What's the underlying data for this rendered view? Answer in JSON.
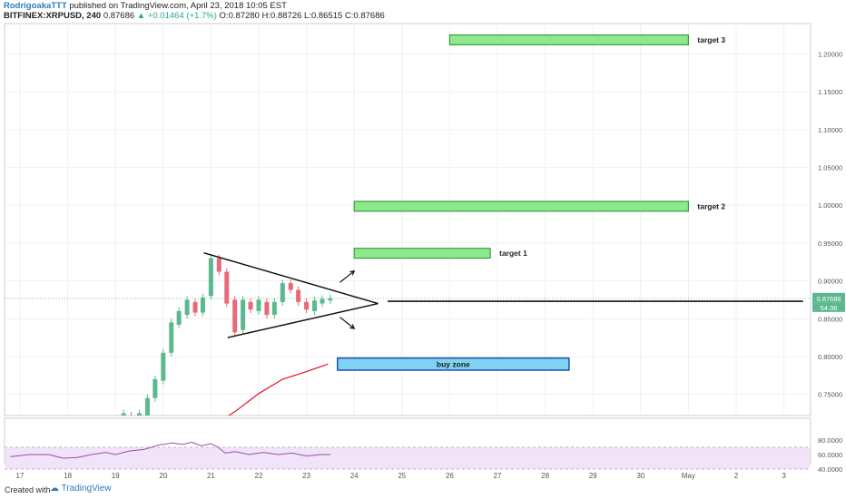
{
  "header": {
    "author": "RodrigoakaTTT",
    "published": "published on TradingView.com, April 23, 2018 10:05 EST",
    "symbol": "BITFINEX:XRPUSD, 240",
    "last": "0.87686",
    "change": "▲ +0.01464 (+1.7%)",
    "ohlc": "O:0.87280 H:0.88726 L:0.86515 C:0.87686"
  },
  "footer": {
    "created_with": "Created with",
    "brand": "TradingView"
  },
  "colors": {
    "up": "#5cb88e",
    "down": "#e8697a",
    "ma": "#e3121e",
    "rsi": "#9c4fa3",
    "target_fill": "#8ee88e",
    "target_border": "#3a9e3a",
    "buy_fill": "#7fd3f0",
    "buy_border": "#1b4fb3",
    "rsi_band": "#f1e3f8"
  },
  "chart_data": {
    "type": "candlestick",
    "symbol": "BITFINEX:XRPUSD",
    "interval": "240",
    "x_labels": [
      "17",
      "18",
      "19",
      "20",
      "21",
      "22",
      "23",
      "24",
      "25",
      "26",
      "27",
      "28",
      "29",
      "30",
      "May",
      "2",
      "3"
    ],
    "y_ticks": [
      "1.20000",
      "1.15000",
      "1.10000",
      "1.05000",
      "1.00000",
      "0.95000",
      "0.90000",
      "0.85000",
      "0.80000",
      "0.75000"
    ],
    "ylim": [
      0.71,
      1.25
    ],
    "last_price_label": "0.87686",
    "countdown_label": "54:36",
    "rsi_ticks": [
      "80.0000",
      "60.0000",
      "40.0000"
    ],
    "candles": [
      {
        "day": 19.0,
        "o": 0.705,
        "c": 0.715
      },
      {
        "day": 19.17,
        "o": 0.712,
        "c": 0.725
      },
      {
        "day": 19.33,
        "o": 0.722,
        "c": 0.71
      },
      {
        "day": 19.5,
        "o": 0.712,
        "c": 0.725
      },
      {
        "day": 19.67,
        "o": 0.722,
        "c": 0.745
      },
      {
        "day": 19.83,
        "o": 0.745,
        "c": 0.77
      },
      {
        "day": 20.0,
        "o": 0.768,
        "c": 0.805
      },
      {
        "day": 20.17,
        "o": 0.805,
        "c": 0.845
      },
      {
        "day": 20.33,
        "o": 0.842,
        "c": 0.86
      },
      {
        "day": 20.5,
        "o": 0.855,
        "c": 0.875
      },
      {
        "day": 20.67,
        "o": 0.872,
        "c": 0.858
      },
      {
        "day": 20.83,
        "o": 0.858,
        "c": 0.878
      },
      {
        "day": 21.0,
        "o": 0.88,
        "c": 0.93
      },
      {
        "day": 21.17,
        "o": 0.93,
        "c": 0.912
      },
      {
        "day": 21.33,
        "o": 0.912,
        "c": 0.87
      },
      {
        "day": 21.5,
        "o": 0.875,
        "c": 0.832
      },
      {
        "day": 21.67,
        "o": 0.835,
        "c": 0.875
      },
      {
        "day": 21.83,
        "o": 0.872,
        "c": 0.862
      },
      {
        "day": 22.0,
        "o": 0.86,
        "c": 0.875
      },
      {
        "day": 22.17,
        "o": 0.872,
        "c": 0.855
      },
      {
        "day": 22.33,
        "o": 0.855,
        "c": 0.872
      },
      {
        "day": 22.5,
        "o": 0.872,
        "c": 0.897
      },
      {
        "day": 22.67,
        "o": 0.897,
        "c": 0.888
      },
      {
        "day": 22.83,
        "o": 0.888,
        "c": 0.872
      },
      {
        "day": 23.0,
        "o": 0.872,
        "c": 0.862
      },
      {
        "day": 23.17,
        "o": 0.86,
        "c": 0.874
      },
      {
        "day": 23.33,
        "o": 0.87,
        "c": 0.876
      },
      {
        "day": 23.5,
        "o": 0.874,
        "c": 0.877
      }
    ],
    "moving_average": [
      [
        21.15,
        0.713
      ],
      [
        21.5,
        0.727
      ],
      [
        22.0,
        0.751
      ],
      [
        22.5,
        0.77
      ],
      [
        23.0,
        0.78
      ],
      [
        23.45,
        0.79
      ]
    ],
    "annotations": {
      "targets": [
        {
          "label": "target 3",
          "start": 26.0,
          "end": 31.0,
          "low": 1.212,
          "high": 1.225
        },
        {
          "label": "target 2",
          "start": 24.0,
          "end": 31.0,
          "low": 0.992,
          "high": 1.005
        },
        {
          "label": "target 1",
          "start": 24.0,
          "end": 26.85,
          "low": 0.93,
          "high": 0.943
        }
      ],
      "buy_zone": {
        "label": "buy zone",
        "start": 23.65,
        "end": 28.5,
        "low": 0.782,
        "high": 0.798
      },
      "triangle": {
        "upper": [
          [
            20.85,
            0.937
          ],
          [
            24.5,
            0.87
          ]
        ],
        "lower": [
          [
            21.35,
            0.825
          ],
          [
            24.5,
            0.87
          ]
        ]
      },
      "resistance_line": {
        "start": 24.7,
        "end": 33.4,
        "price": 0.873
      },
      "arrows": [
        {
          "from": [
            23.7,
            0.898
          ],
          "to": [
            24.0,
            0.913
          ]
        },
        {
          "from": [
            23.7,
            0.852
          ],
          "to": [
            24.0,
            0.837
          ]
        }
      ]
    },
    "rsi": {
      "band": [
        40,
        70
      ],
      "points": [
        [
          16.8,
          57
        ],
        [
          17.2,
          60
        ],
        [
          17.6,
          60
        ],
        [
          17.9,
          55
        ],
        [
          18.2,
          56
        ],
        [
          18.5,
          60
        ],
        [
          18.8,
          63
        ],
        [
          19.0,
          60
        ],
        [
          19.3,
          65
        ],
        [
          19.6,
          67
        ],
        [
          19.9,
          73
        ],
        [
          20.2,
          76
        ],
        [
          20.4,
          74
        ],
        [
          20.6,
          77
        ],
        [
          20.8,
          72
        ],
        [
          21.0,
          75
        ],
        [
          21.15,
          70
        ],
        [
          21.3,
          62
        ],
        [
          21.5,
          64
        ],
        [
          21.8,
          60
        ],
        [
          22.1,
          63
        ],
        [
          22.4,
          60
        ],
        [
          22.7,
          62
        ],
        [
          23.0,
          58
        ],
        [
          23.3,
          60
        ],
        [
          23.5,
          60
        ]
      ]
    }
  }
}
